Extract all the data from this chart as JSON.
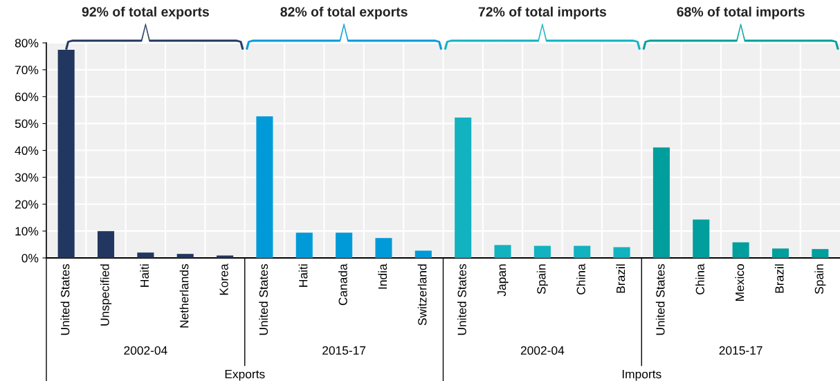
{
  "chart_data": {
    "type": "bar",
    "categories": [
      "United States",
      "Unspecified",
      "Haiti",
      "Netherlands",
      "Korea",
      "United States",
      "Haiti",
      "Canada",
      "India",
      "Switzerland",
      "United States",
      "Japan",
      "Spain",
      "China",
      "Brazil",
      "United States",
      "China",
      "Mexico",
      "Brazil",
      "Spain"
    ],
    "values": [
      77.4,
      10.0,
      2.0,
      1.5,
      0.9,
      52.7,
      9.4,
      9.4,
      7.4,
      2.7,
      52.2,
      4.8,
      4.5,
      4.5,
      4.0,
      41.1,
      14.3,
      5.8,
      3.5,
      3.3
    ],
    "colors": [
      "#22375f",
      "#22375f",
      "#22375f",
      "#22375f",
      "#22375f",
      "#009ad9",
      "#009ad9",
      "#009ad9",
      "#009ad9",
      "#009ad9",
      "#12b2c0",
      "#12b2c0",
      "#12b2c0",
      "#12b2c0",
      "#12b2c0",
      "#009e9c",
      "#009e9c",
      "#009e9c",
      "#009e9c",
      "#009e9c"
    ],
    "ylim": [
      0,
      80
    ],
    "yticks": [
      {
        "value": 0,
        "label": "0%"
      },
      {
        "value": 10,
        "label": "10%"
      },
      {
        "value": 20,
        "label": "20%"
      },
      {
        "value": 30,
        "label": "30%"
      },
      {
        "value": 40,
        "label": "40%"
      },
      {
        "value": 50,
        "label": "50%"
      },
      {
        "value": 60,
        "label": "60%"
      },
      {
        "value": 70,
        "label": "70%"
      },
      {
        "value": 80,
        "label": "80%"
      }
    ],
    "grid": true,
    "annotations": [
      "92% of total exports",
      "82% of total exports",
      "72% of total imports",
      "68% of total imports",
      "2002-04",
      "2015-17",
      "2002-04",
      "2015-17",
      "Exports",
      "Imports"
    ]
  }
}
